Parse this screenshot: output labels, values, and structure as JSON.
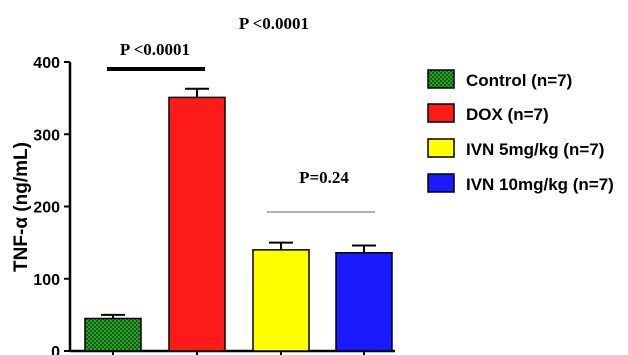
{
  "chart_data": {
    "type": "bar",
    "ylabel": "TNF-α (ng/mL)",
    "ylim": [
      0,
      400
    ],
    "yticks": [
      0,
      100,
      200,
      300,
      400
    ],
    "bars": [
      {
        "name": "Control (n=7)",
        "value": 45,
        "error": 5,
        "color": "#2e9e2e",
        "pattern": "checkered"
      },
      {
        "name": "DOX (n=7)",
        "value": 351,
        "error": 12,
        "color": "#ff1a1a",
        "pattern": "solid"
      },
      {
        "name": "IVN 5mg/kg (n=7)",
        "value": 140,
        "error": 10,
        "color": "#ffff00",
        "pattern": "solid"
      },
      {
        "name": "IVN 10mg/kg (n=7)",
        "value": 136,
        "error": 10,
        "color": "#1a1aff",
        "pattern": "solid"
      }
    ],
    "annotations": [
      {
        "text": "P <0.0001",
        "role": "overall"
      },
      {
        "text": "P <0.0001",
        "role": "control-vs-dox"
      },
      {
        "text": "P=0.24",
        "role": "ivn5-vs-ivn10"
      }
    ],
    "legend_position": "right"
  }
}
